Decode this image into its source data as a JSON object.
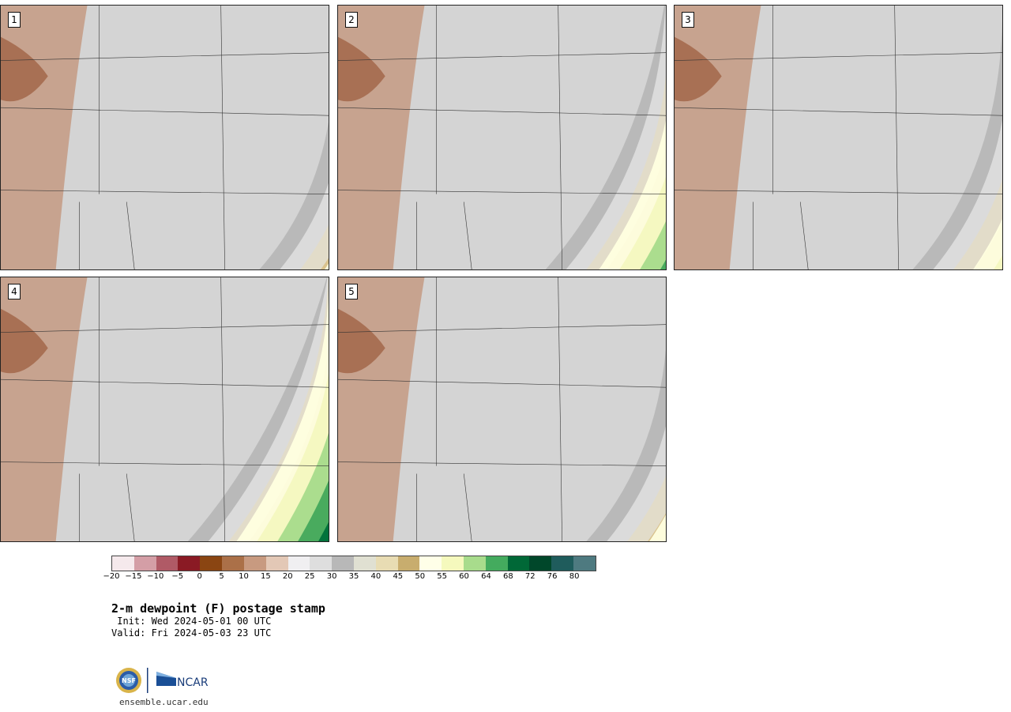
{
  "panels": [
    {
      "label": "1",
      "warmth": 0.35
    },
    {
      "label": "2",
      "warmth": 0.6
    },
    {
      "label": "3",
      "warmth": 0.45
    },
    {
      "label": "4",
      "warmth": 0.7
    },
    {
      "label": "5",
      "warmth": 0.4
    }
  ],
  "colorbar": {
    "colors": [
      "#f5e9ec",
      "#d49ea6",
      "#b05a66",
      "#8a1a24",
      "#8a4512",
      "#ab7048",
      "#c89a80",
      "#e3c8b6",
      "#f0eff1",
      "#dedede",
      "#b8b8b8",
      "#e0e0d2",
      "#e8dcb3",
      "#c8ad6e",
      "#ffffe8",
      "#f5f9bd",
      "#a8dc8c",
      "#44ab5e",
      "#006837",
      "#00472a",
      "#1f5c5c",
      "#4e7a80"
    ],
    "tick_labels": [
      "−20",
      "−15",
      "−10",
      "−5",
      "0",
      "5",
      "10",
      "15",
      "20",
      "25",
      "30",
      "35",
      "40",
      "45",
      "50",
      "55",
      "60",
      "64",
      "68",
      "72",
      "76",
      "80"
    ]
  },
  "title": "2-m dewpoint (F) postage stamp",
  "init_line": " Init: Wed 2024-05-01 00 UTC",
  "valid_line": "Valid: Fri 2024-05-03 23 UTC",
  "logos": [
    "NSF",
    "NCAR"
  ],
  "url": "ensemble.ucar.edu"
}
